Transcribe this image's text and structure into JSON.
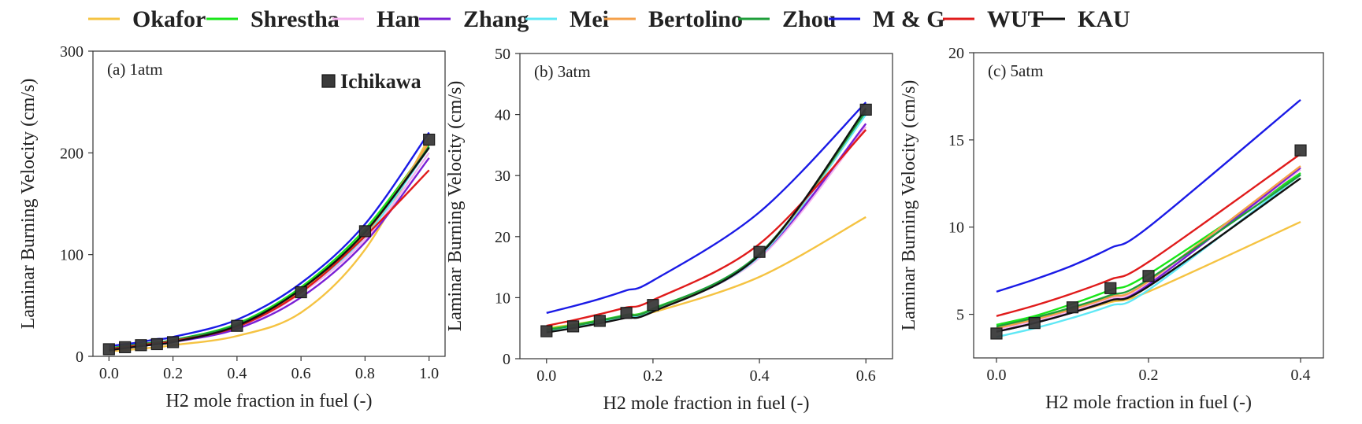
{
  "chart_data": [
    {
      "type": "line",
      "title": "(a) 1atm",
      "xlabel": "H2 mole fraction in fuel (-)",
      "ylabel": "Laminar Burning Velocity (cm/s)",
      "xlim": [
        -0.05,
        1.05
      ],
      "ylim": [
        0,
        300
      ],
      "xticks": [
        0.0,
        0.2,
        0.4,
        0.6,
        0.8,
        1.0
      ],
      "xtick_labels": [
        "0.0",
        "0.2",
        "0.4",
        "0.6",
        "0.8",
        "1.0"
      ],
      "yticks": [
        0,
        100,
        200,
        300
      ],
      "ytick_labels": [
        "0",
        "100",
        "200",
        "300"
      ],
      "x": [
        0.0,
        0.05,
        0.1,
        0.15,
        0.2,
        0.4,
        0.6,
        0.8,
        1.0
      ],
      "series": [
        {
          "name": "Okafor",
          "color": "#f5c342",
          "values": [
            5,
            6,
            7.5,
            9,
            11,
            20,
            43,
            105,
            215
          ]
        },
        {
          "name": "Shrestha",
          "color": "#19e619",
          "values": [
            8,
            10,
            12,
            14,
            16,
            32,
            68,
            125,
            208
          ]
        },
        {
          "name": "Han",
          "color": "#f5b5ef",
          "values": [
            6,
            8,
            10,
            12,
            14,
            28,
            62,
            115,
            200
          ]
        },
        {
          "name": "Zhang",
          "color": "#7a1fd6",
          "values": [
            6,
            8,
            10,
            12,
            14,
            27,
            58,
            112,
            195
          ]
        },
        {
          "name": "Mei",
          "color": "#5fe8f5",
          "values": [
            7,
            9,
            11,
            13,
            15,
            30,
            64,
            118,
            205
          ]
        },
        {
          "name": "Bertolino",
          "color": "#f5a04a",
          "values": [
            7,
            9,
            11,
            13,
            15,
            30,
            65,
            120,
            210
          ]
        },
        {
          "name": "Zhou",
          "color": "#1e9e3a",
          "values": [
            8,
            10,
            12,
            14,
            16,
            31,
            66,
            122,
            206
          ]
        },
        {
          "name": "M & G",
          "color": "#1a1ae6",
          "values": [
            10,
            12,
            14,
            17,
            19,
            36,
            72,
            130,
            220
          ]
        },
        {
          "name": "WUT",
          "color": "#e01b1b",
          "values": [
            7,
            9,
            11,
            13,
            15,
            29,
            63,
            118,
            183
          ]
        },
        {
          "name": "KAU",
          "color": "#111111",
          "values": [
            6,
            8,
            10,
            12,
            14,
            30,
            66,
            122,
            205
          ]
        }
      ],
      "scatter": {
        "name": "Ichikawa",
        "color": "#3a3a3a",
        "x": [
          0.0,
          0.05,
          0.1,
          0.15,
          0.2,
          0.4,
          0.6,
          0.8,
          1.0
        ],
        "y": [
          7,
          9,
          11,
          12,
          14,
          30,
          63,
          123,
          213
        ]
      }
    },
    {
      "type": "line",
      "title": "(b) 3atm",
      "xlabel": "H2 mole fraction in fuel (-)",
      "ylabel": "Laminar Burning Velocity (cm/s)",
      "xlim": [
        -0.05,
        0.65
      ],
      "ylim": [
        0,
        50
      ],
      "xticks": [
        0.0,
        0.2,
        0.4,
        0.6
      ],
      "xtick_labels": [
        "0.0",
        "0.2",
        "0.4",
        "0.6"
      ],
      "yticks": [
        0,
        10,
        20,
        30,
        40,
        50
      ],
      "ytick_labels": [
        "0",
        "10",
        "20",
        "30",
        "40",
        "50"
      ],
      "x": [
        0.0,
        0.05,
        0.1,
        0.15,
        0.2,
        0.4,
        0.6
      ],
      "series": [
        {
          "name": "Okafor",
          "color": "#f5c342",
          "values": [
            5.0,
            5.6,
            6.3,
            6.9,
            7.6,
            13.4,
            23.2
          ]
        },
        {
          "name": "Shrestha",
          "color": "#19e619",
          "values": [
            4.8,
            5.5,
            6.3,
            7.2,
            8.2,
            17.0,
            41.0
          ]
        },
        {
          "name": "Han",
          "color": "#f5b5ef",
          "values": [
            4.6,
            5.3,
            6.1,
            7.0,
            8.0,
            16.5,
            38.0
          ]
        },
        {
          "name": "Zhang",
          "color": "#7a1fd6",
          "values": [
            4.6,
            5.3,
            6.1,
            7.0,
            8.0,
            16.8,
            38.5
          ]
        },
        {
          "name": "Mei",
          "color": "#5fe8f5",
          "values": [
            4.5,
            5.2,
            6.0,
            6.9,
            7.9,
            16.8,
            40.0
          ]
        },
        {
          "name": "Bertolino",
          "color": "#f5a04a",
          "values": [
            4.7,
            5.4,
            6.2,
            7.1,
            8.1,
            17.0,
            40.5
          ]
        },
        {
          "name": "Zhou",
          "color": "#1e9e3a",
          "values": [
            4.7,
            5.4,
            6.2,
            7.1,
            8.1,
            17.2,
            40.5
          ]
        },
        {
          "name": "M & G",
          "color": "#1a1ae6",
          "values": [
            7.5,
            8.6,
            9.8,
            11.2,
            12.8,
            24.0,
            42.0
          ]
        },
        {
          "name": "WUT",
          "color": "#e01b1b",
          "values": [
            5.4,
            6.3,
            7.3,
            8.4,
            9.6,
            18.8,
            37.5
          ]
        },
        {
          "name": "KAU",
          "color": "#111111",
          "values": [
            4.3,
            5.0,
            5.8,
            6.7,
            7.7,
            17.0,
            41.0
          ]
        }
      ],
      "scatter": {
        "name": "Ichikawa",
        "color": "#3a3a3a",
        "x": [
          0.0,
          0.05,
          0.1,
          0.15,
          0.2,
          0.4,
          0.6
        ],
        "y": [
          4.5,
          5.3,
          6.2,
          7.5,
          8.8,
          17.5,
          40.8
        ]
      }
    },
    {
      "type": "line",
      "title": "(c) 5atm",
      "xlabel": "H2 mole fraction in fuel (-)",
      "ylabel": "Laminar Burning Velocity (cm/s)",
      "xlim": [
        -0.03,
        0.43
      ],
      "ylim": [
        2.5,
        20
      ],
      "xticks": [
        0.0,
        0.2,
        0.4
      ],
      "xtick_labels": [
        "0.0",
        "0.2",
        "0.4"
      ],
      "yticks": [
        5,
        10,
        15,
        20
      ],
      "ytick_labels": [
        "5",
        "10",
        "15",
        "20"
      ],
      "x": [
        0.0,
        0.05,
        0.1,
        0.15,
        0.2,
        0.4
      ],
      "series": [
        {
          "name": "Okafor",
          "color": "#f5c342",
          "values": [
            4.2,
            4.6,
            5.1,
            5.7,
            6.3,
            10.3
          ]
        },
        {
          "name": "Shrestha",
          "color": "#19e619",
          "values": [
            4.4,
            4.9,
            5.6,
            6.4,
            7.3,
            13.1
          ]
        },
        {
          "name": "Han",
          "color": "#f5b5ef",
          "values": [
            4.1,
            4.6,
            5.2,
            5.9,
            6.8,
            13.3
          ]
        },
        {
          "name": "Zhang",
          "color": "#7a1fd6",
          "values": [
            4.0,
            4.5,
            5.1,
            5.8,
            6.7,
            13.4
          ]
        },
        {
          "name": "Mei",
          "color": "#5fe8f5",
          "values": [
            3.7,
            4.2,
            4.8,
            5.5,
            6.4,
            13.0
          ]
        },
        {
          "name": "Bertolino",
          "color": "#f5a04a",
          "values": [
            4.2,
            4.7,
            5.3,
            6.0,
            6.9,
            13.5
          ]
        },
        {
          "name": "Zhou",
          "color": "#1e9e3a",
          "values": [
            4.3,
            4.8,
            5.4,
            6.1,
            7.0,
            13.0
          ]
        },
        {
          "name": "M & G",
          "color": "#1a1ae6",
          "values": [
            6.3,
            7.0,
            7.8,
            8.8,
            10.0,
            17.3
          ]
        },
        {
          "name": "WUT",
          "color": "#e01b1b",
          "values": [
            4.9,
            5.5,
            6.2,
            7.0,
            8.0,
            14.2
          ]
        },
        {
          "name": "KAU",
          "color": "#111111",
          "values": [
            4.0,
            4.5,
            5.1,
            5.8,
            6.6,
            12.8
          ]
        }
      ],
      "scatter": {
        "name": "Ichikawa",
        "color": "#3a3a3a",
        "x": [
          0.0,
          0.05,
          0.1,
          0.15,
          0.2,
          0.4
        ],
        "y": [
          3.9,
          4.5,
          5.4,
          6.5,
          7.2,
          14.4
        ]
      }
    }
  ],
  "legend": {
    "position": "top",
    "entries": [
      {
        "name": "Okafor",
        "color": "#f5c342"
      },
      {
        "name": "Shrestha",
        "color": "#19e619"
      },
      {
        "name": "Han",
        "color": "#f5b5ef"
      },
      {
        "name": "Zhang",
        "color": "#7a1fd6"
      },
      {
        "name": "Mei",
        "color": "#5fe8f5"
      },
      {
        "name": "Bertolino",
        "color": "#f5a04a"
      },
      {
        "name": "Zhou",
        "color": "#1e9e3a"
      },
      {
        "name": "M & G",
        "color": "#1a1ae6"
      },
      {
        "name": "WUT",
        "color": "#e01b1b"
      },
      {
        "name": "KAU",
        "color": "#111111"
      }
    ]
  },
  "inset_legend": {
    "label": "Ichikawa",
    "color": "#3a3a3a"
  }
}
